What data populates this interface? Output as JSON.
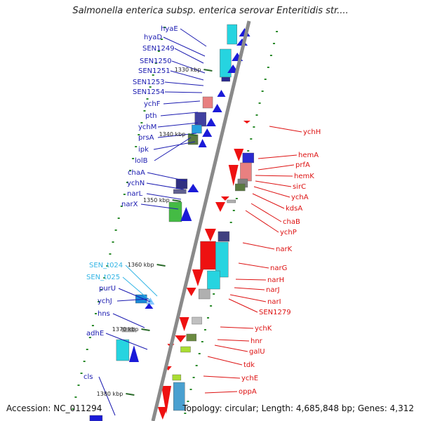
{
  "header": {
    "title": "Salmonella enterica subsp. enterica serovar Enteritidis str...."
  },
  "footer": {
    "accession": "Accession: NC_011294",
    "summary": "Topology: circular; Length: 4,685,848 bp; Genes: 4,312"
  },
  "colors": {
    "forward_label": "#1a1ab0",
    "reverse_label": "#dd1111",
    "trna_label": "#33b5e5",
    "backbone": "#8a8a8a",
    "tick": "#2a8a2a"
  },
  "scale_ticks": [
    "1330 kbp",
    "1340 kbp",
    "1350 kbp",
    "1360 kbp",
    "1370 kbp",
    "1380 kbp"
  ],
  "left_labels": [
    "hyaE",
    "hyaD",
    "SEN1249",
    "SEN1250",
    "SEN1251",
    "SEN1253",
    "SEN1254",
    "ychF",
    "pth",
    "ychM",
    "prsA",
    "ipk",
    "lolB",
    "chaA",
    "ychN",
    "narL",
    "narX",
    "SEN_t024",
    "SEN_t025",
    "purU",
    "ychJ",
    "hns",
    "adhE",
    "cls"
  ],
  "right_labels": [
    "ychH",
    "hemA",
    "prfA",
    "hemK",
    "sirC",
    "ychA",
    "kdsA",
    "chaB",
    "ychP",
    "narK",
    "narG",
    "narH",
    "narJ",
    "narI",
    "SEN1279",
    "ychK",
    "hnr",
    "galU",
    "tdk",
    "ychE",
    "oppA"
  ]
}
